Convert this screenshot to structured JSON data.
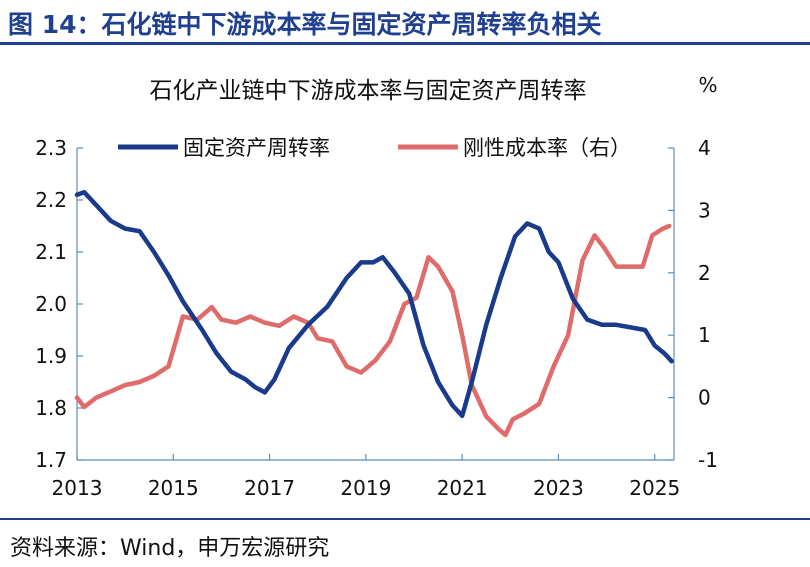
{
  "header": {
    "title": "图 14：石化链中下游成本率与固定资产周转率负相关"
  },
  "footer": {
    "source": "资料来源：Wind，申万宏源研究"
  },
  "colors": {
    "brand": "#1f3f8f",
    "series_left": "#1a3a8c",
    "series_right": "#e06b6b",
    "axis": "#5b8fb9"
  },
  "chart_data": {
    "type": "line",
    "title": "石化产业链中下游成本率与固定资产周转率",
    "right_axis_unit": "%",
    "left_axis": {
      "ylim": [
        1.7,
        2.3
      ],
      "ticks": [
        "1.7",
        "1.8",
        "1.9",
        "2.0",
        "2.1",
        "2.2",
        "2.3"
      ]
    },
    "right_axis": {
      "ylim": [
        -1,
        4
      ],
      "ticks": [
        "-1",
        "0",
        "1",
        "2",
        "3",
        "4"
      ]
    },
    "x_axis": {
      "xlim": [
        2013,
        2025.4
      ],
      "ticks": [
        "2013",
        "2015",
        "2017",
        "2019",
        "2021",
        "2023",
        "2025"
      ]
    },
    "legend": [
      "固定资产周转率",
      "刚性成本率（右）"
    ],
    "series": [
      {
        "name": "固定资产周转率",
        "axis": "left",
        "color": "#1a3a8c",
        "x": [
          2013.0,
          2013.15,
          2013.4,
          2013.7,
          2014.0,
          2014.3,
          2014.6,
          2014.9,
          2015.2,
          2015.6,
          2015.9,
          2016.2,
          2016.5,
          2016.7,
          2016.9,
          2017.1,
          2017.4,
          2017.8,
          2018.2,
          2018.6,
          2018.9,
          2019.15,
          2019.35,
          2019.6,
          2019.9,
          2020.2,
          2020.5,
          2020.8,
          2021.0,
          2021.2,
          2021.5,
          2021.8,
          2022.1,
          2022.35,
          2022.6,
          2022.8,
          2023.0,
          2023.3,
          2023.6,
          2023.9,
          2024.2,
          2024.5,
          2024.8,
          2025.0,
          2025.2,
          2025.35
        ],
        "values": [
          2.21,
          2.215,
          2.19,
          2.16,
          2.145,
          2.14,
          2.1,
          2.055,
          2.005,
          1.95,
          1.905,
          1.87,
          1.855,
          1.84,
          1.83,
          1.855,
          1.915,
          1.96,
          1.995,
          2.05,
          2.08,
          2.08,
          2.09,
          2.06,
          2.02,
          1.92,
          1.85,
          1.805,
          1.785,
          1.85,
          1.96,
          2.05,
          2.13,
          2.155,
          2.145,
          2.1,
          2.08,
          2.01,
          1.97,
          1.96,
          1.96,
          1.955,
          1.95,
          1.92,
          1.905,
          1.89
        ]
      },
      {
        "name": "刚性成本率（右）",
        "axis": "right",
        "color": "#e06b6b",
        "x": [
          2013.0,
          2013.15,
          2013.4,
          2013.7,
          2014.0,
          2014.3,
          2014.6,
          2014.9,
          2015.2,
          2015.5,
          2015.8,
          2016.0,
          2016.3,
          2016.6,
          2016.9,
          2017.2,
          2017.5,
          2017.8,
          2018.0,
          2018.3,
          2018.6,
          2018.9,
          2019.2,
          2019.5,
          2019.8,
          2020.05,
          2020.3,
          2020.5,
          2020.8,
          2021.0,
          2021.2,
          2021.5,
          2021.75,
          2021.9,
          2022.05,
          2022.3,
          2022.6,
          2022.9,
          2023.2,
          2023.5,
          2023.75,
          2023.95,
          2024.2,
          2024.5,
          2024.75,
          2024.95,
          2025.15,
          2025.3
        ],
        "values": [
          0.0,
          -0.15,
          0.0,
          0.1,
          0.2,
          0.25,
          0.35,
          0.5,
          1.3,
          1.25,
          1.45,
          1.25,
          1.2,
          1.3,
          1.2,
          1.15,
          1.3,
          1.2,
          0.95,
          0.9,
          0.5,
          0.4,
          0.6,
          0.9,
          1.5,
          1.6,
          2.25,
          2.1,
          1.7,
          1.0,
          0.2,
          -0.3,
          -0.5,
          -0.6,
          -0.35,
          -0.25,
          -0.1,
          0.5,
          1.0,
          2.2,
          2.6,
          2.4,
          2.1,
          2.1,
          2.1,
          2.6,
          2.7,
          2.75
        ]
      }
    ]
  }
}
